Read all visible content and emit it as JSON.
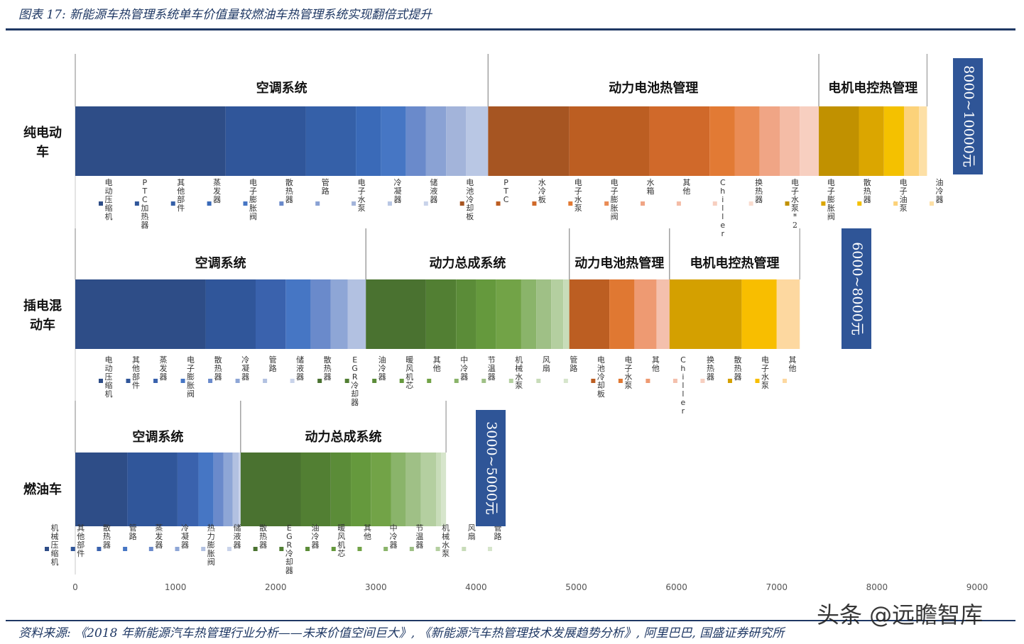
{
  "header": {
    "title": "图表 17:  新能源车热管理系统单车价值量较燃油车热管理系统实现翻倍式提升"
  },
  "footer": {
    "source": "资料来源: 《2018 年新能源汽车热管理行业分析——未来价值空间巨大》, 《新能源汽车热管理技术发展趋势分析》, 阿里巴巴, 国盛证券研究所"
  },
  "watermark": "头条 @远瞻智库",
  "chart_data": {
    "type": "bar",
    "orientation": "horizontal",
    "stacked": true,
    "xlim": [
      0,
      9000
    ],
    "x_ticks": [
      "0",
      "1000",
      "2000",
      "3000",
      "4000",
      "5000",
      "6000",
      "7000",
      "8000",
      "9000"
    ],
    "grid": false,
    "rows": [
      {
        "name": "纯电动车",
        "range_label": "8000~10000元",
        "groups": [
          {
            "label": "空调系统",
            "start": 0,
            "end": 4120
          },
          {
            "label": "动力电池热管理",
            "start": 4120,
            "end": 7420
          },
          {
            "label": "电机电控热管理",
            "start": 7420,
            "end": 8500
          }
        ],
        "segments": [
          {
            "name": "电动压缩机",
            "start": 0,
            "end": 1500,
            "color": "#2e4d87"
          },
          {
            "name": "PTC加热器",
            "start": 1500,
            "end": 2300,
            "color": "#30569a"
          },
          {
            "name": "其他部件",
            "start": 2300,
            "end": 2800,
            "color": "#3560a8"
          },
          {
            "name": "蒸发器",
            "start": 2800,
            "end": 3050,
            "color": "#3a6ab8"
          },
          {
            "name": "电子膨胀阀",
            "start": 3050,
            "end": 3300,
            "color": "#4676c4"
          },
          {
            "name": "散热器",
            "start": 3300,
            "end": 3500,
            "color": "#6a8acb"
          },
          {
            "name": "管路",
            "start": 3500,
            "end": 3700,
            "color": "#8aa2d4"
          },
          {
            "name": "电子水泵",
            "start": 3700,
            "end": 3900,
            "color": "#a3b4da"
          },
          {
            "name": "冷凝器",
            "start": 3900,
            "end": 4120,
            "color": "#b9c7e4"
          },
          {
            "name": "储液器",
            "start": 4120,
            "end": 4120,
            "color": "#c9d3ea"
          },
          {
            "name": "电池冷却板",
            "start": 4120,
            "end": 4930,
            "color": "#a65522"
          },
          {
            "name": "PTC",
            "start": 4930,
            "end": 5730,
            "color": "#bc5e22"
          },
          {
            "name": "水冷板",
            "start": 5730,
            "end": 6330,
            "color": "#d0692a"
          },
          {
            "name": "电子水泵",
            "start": 6330,
            "end": 6580,
            "color": "#e27a34"
          },
          {
            "name": "电子膨胀阀",
            "start": 6580,
            "end": 6830,
            "color": "#ea8c55"
          },
          {
            "name": "水箱",
            "start": 6830,
            "end": 7030,
            "color": "#f0a585"
          },
          {
            "name": "其他",
            "start": 7030,
            "end": 7230,
            "color": "#f4bca6"
          },
          {
            "name": "Chiller",
            "start": 7230,
            "end": 7420,
            "color": "#f7cfc0"
          },
          {
            "name": "换热器",
            "start": 7420,
            "end": 7420,
            "color": "#f9dccf"
          },
          {
            "name": "电子水泵*2",
            "start": 7420,
            "end": 7820,
            "color": "#c19100"
          },
          {
            "name": "电子膨胀阀",
            "start": 7820,
            "end": 8070,
            "color": "#dba600"
          },
          {
            "name": "散热器",
            "start": 8070,
            "end": 8270,
            "color": "#f4c100"
          },
          {
            "name": "电子油泵",
            "start": 8270,
            "end": 8420,
            "color": "#fcd27a"
          },
          {
            "name": "油冷器",
            "start": 8420,
            "end": 8500,
            "color": "#fde0a6"
          }
        ]
      },
      {
        "name": "插电混动车",
        "range_label": "6000~8000元",
        "groups": [
          {
            "label": "空调系统",
            "start": 0,
            "end": 2900
          },
          {
            "label": "动力总成系统",
            "start": 2900,
            "end": 4930
          },
          {
            "label": "动力电池热管理",
            "start": 4930,
            "end": 5930
          },
          {
            "label": "电机电控热管理",
            "start": 5930,
            "end": 7230
          }
        ],
        "segments": [
          {
            "name": "电动压缩机",
            "start": 0,
            "end": 1300,
            "color": "#2e4d87"
          },
          {
            "name": "其他部件",
            "start": 1300,
            "end": 1800,
            "color": "#30569a"
          },
          {
            "name": "蒸发器",
            "start": 1800,
            "end": 2100,
            "color": "#3a62ad"
          },
          {
            "name": "电子膨胀阀",
            "start": 2100,
            "end": 2350,
            "color": "#4676c4"
          },
          {
            "name": "散热器",
            "start": 2350,
            "end": 2550,
            "color": "#6a8acb"
          },
          {
            "name": "冷凝器",
            "start": 2550,
            "end": 2720,
            "color": "#8ea6d6"
          },
          {
            "name": "管路",
            "start": 2720,
            "end": 2900,
            "color": "#b2c1e1"
          },
          {
            "name": "储液器",
            "start": 2900,
            "end": 2900,
            "color": "#c9d3ea"
          },
          {
            "name": "散热器",
            "start": 2900,
            "end": 3500,
            "color": "#4a7230"
          },
          {
            "name": "EGR冷却器",
            "start": 3500,
            "end": 3800,
            "color": "#527f33"
          },
          {
            "name": "油冷器",
            "start": 3800,
            "end": 4000,
            "color": "#5b8c38"
          },
          {
            "name": "暖风机芯",
            "start": 4000,
            "end": 4200,
            "color": "#65993d"
          },
          {
            "name": "其他",
            "start": 4200,
            "end": 4450,
            "color": "#72a347"
          },
          {
            "name": "中冷器",
            "start": 4450,
            "end": 4600,
            "color": "#8ab46a"
          },
          {
            "name": "节温器",
            "start": 4600,
            "end": 4750,
            "color": "#9fc086"
          },
          {
            "name": "机械水泵",
            "start": 4750,
            "end": 4870,
            "color": "#b4cfa0"
          },
          {
            "name": "风扇",
            "start": 4870,
            "end": 4930,
            "color": "#c8dcb9"
          },
          {
            "name": "管路",
            "start": 4930,
            "end": 4930,
            "color": "#d6e5cb"
          },
          {
            "name": "电池冷却板",
            "start": 4930,
            "end": 5330,
            "color": "#bc5e22"
          },
          {
            "name": "电子水泵",
            "start": 5330,
            "end": 5580,
            "color": "#e07832"
          },
          {
            "name": "其他",
            "start": 5580,
            "end": 5800,
            "color": "#ee9a72"
          },
          {
            "name": "Chiller",
            "start": 5800,
            "end": 5930,
            "color": "#f4c0ad"
          },
          {
            "name": "换热器",
            "start": 5930,
            "end": 5930,
            "color": "#f7cfc0"
          },
          {
            "name": "散热器",
            "start": 5930,
            "end": 6650,
            "color": "#d4a000"
          },
          {
            "name": "电子水泵",
            "start": 6650,
            "end": 7000,
            "color": "#f8be00"
          },
          {
            "name": "其他",
            "start": 7000,
            "end": 7230,
            "color": "#fdd8a0"
          }
        ]
      },
      {
        "name": "燃油车",
        "range_label": "3000~5000元",
        "groups": [
          {
            "label": "空调系统",
            "start": 0,
            "end": 1650
          },
          {
            "label": "动力总成系统",
            "start": 1650,
            "end": 3700
          }
        ],
        "segments": [
          {
            "name": "机械压缩机",
            "start": 0,
            "end": 520,
            "color": "#2e4d87"
          },
          {
            "name": "其他部件",
            "start": 520,
            "end": 1020,
            "color": "#30569a"
          },
          {
            "name": "散热器",
            "start": 1020,
            "end": 1230,
            "color": "#3a62ad"
          },
          {
            "name": "管路",
            "start": 1230,
            "end": 1380,
            "color": "#4676c4"
          },
          {
            "name": "蒸发器",
            "start": 1380,
            "end": 1480,
            "color": "#6a8acb"
          },
          {
            "name": "冷凝器",
            "start": 1480,
            "end": 1570,
            "color": "#8ea6d6"
          },
          {
            "name": "热力膨胀阀",
            "start": 1570,
            "end": 1630,
            "color": "#b2c1e1"
          },
          {
            "name": "储液器",
            "start": 1630,
            "end": 1650,
            "color": "#c9d3ea"
          },
          {
            "name": "散热器",
            "start": 1650,
            "end": 2250,
            "color": "#4a7230"
          },
          {
            "name": "EGR冷却器",
            "start": 2250,
            "end": 2550,
            "color": "#527f33"
          },
          {
            "name": "油冷器",
            "start": 2550,
            "end": 2750,
            "color": "#5b8c38"
          },
          {
            "name": "暖风机芯",
            "start": 2750,
            "end": 2950,
            "color": "#65993d"
          },
          {
            "name": "其他",
            "start": 2950,
            "end": 3150,
            "color": "#72a347"
          },
          {
            "name": "中冷器",
            "start": 3150,
            "end": 3300,
            "color": "#8ab46a"
          },
          {
            "name": "节温器",
            "start": 3300,
            "end": 3450,
            "color": "#9fc086"
          },
          {
            "name": "机械水泵",
            "start": 3450,
            "end": 3600,
            "color": "#b4cfa0"
          },
          {
            "name": "风扇",
            "start": 3600,
            "end": 3650,
            "color": "#c8dcb9"
          },
          {
            "name": "管路",
            "start": 3650,
            "end": 3700,
            "color": "#d6e5cb"
          }
        ]
      }
    ]
  }
}
